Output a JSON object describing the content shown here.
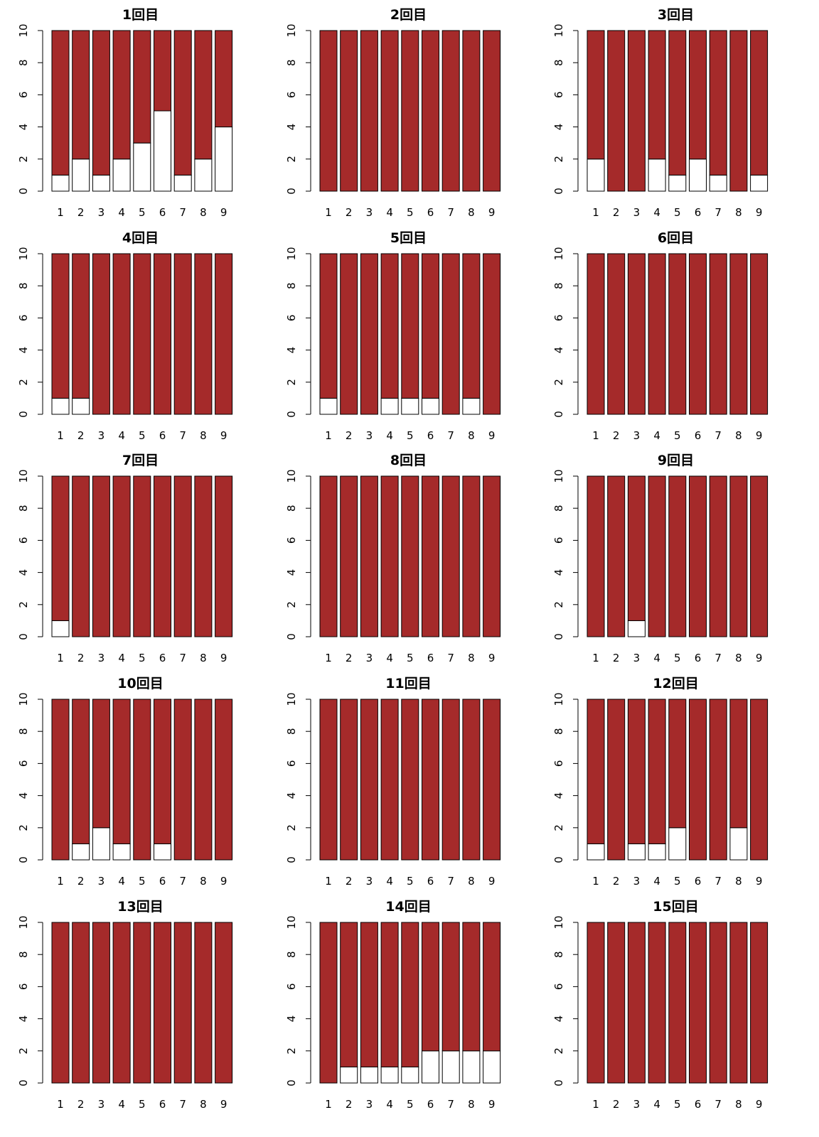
{
  "colors": {
    "stacked_bottom": "#ffffff",
    "stacked_top": "#a52a2a",
    "outline": "#000000"
  },
  "chart_data": [
    {
      "type": "bar",
      "stacked": true,
      "title": "1回目",
      "categories": [
        "1",
        "2",
        "3",
        "4",
        "5",
        "6",
        "7",
        "8",
        "9"
      ],
      "ylim": [
        0,
        10
      ],
      "yticks": [
        "0",
        "2",
        "4",
        "6",
        "8",
        "10"
      ],
      "series": [
        {
          "color": "#ffffff",
          "values": [
            1,
            2,
            1,
            2,
            3,
            5,
            1,
            2,
            4
          ]
        },
        {
          "color": "#a52a2a",
          "values": [
            9,
            8,
            9,
            8,
            7,
            5,
            9,
            8,
            6
          ]
        }
      ]
    },
    {
      "type": "bar",
      "stacked": true,
      "title": "2回目",
      "categories": [
        "1",
        "2",
        "3",
        "4",
        "5",
        "6",
        "7",
        "8",
        "9"
      ],
      "ylim": [
        0,
        10
      ],
      "yticks": [
        "0",
        "2",
        "4",
        "6",
        "8",
        "10"
      ],
      "series": [
        {
          "color": "#ffffff",
          "values": [
            0,
            0,
            0,
            0,
            0,
            0,
            0,
            0,
            0
          ]
        },
        {
          "color": "#a52a2a",
          "values": [
            10,
            10,
            10,
            10,
            10,
            10,
            10,
            10,
            10
          ]
        }
      ]
    },
    {
      "type": "bar",
      "stacked": true,
      "title": "3回目",
      "categories": [
        "1",
        "2",
        "3",
        "4",
        "5",
        "6",
        "7",
        "8",
        "9"
      ],
      "ylim": [
        0,
        10
      ],
      "yticks": [
        "0",
        "2",
        "4",
        "6",
        "8",
        "10"
      ],
      "series": [
        {
          "color": "#ffffff",
          "values": [
            2,
            0,
            0,
            2,
            1,
            2,
            1,
            0,
            1
          ]
        },
        {
          "color": "#a52a2a",
          "values": [
            8,
            10,
            10,
            8,
            9,
            8,
            9,
            10,
            9
          ]
        }
      ]
    },
    {
      "type": "bar",
      "stacked": true,
      "title": "4回目",
      "categories": [
        "1",
        "2",
        "3",
        "4",
        "5",
        "6",
        "7",
        "8",
        "9"
      ],
      "ylim": [
        0,
        10
      ],
      "yticks": [
        "0",
        "2",
        "4",
        "6",
        "8",
        "10"
      ],
      "series": [
        {
          "color": "#ffffff",
          "values": [
            1,
            1,
            0,
            0,
            0,
            0,
            0,
            0,
            0
          ]
        },
        {
          "color": "#a52a2a",
          "values": [
            9,
            9,
            10,
            10,
            10,
            10,
            10,
            10,
            10
          ]
        }
      ]
    },
    {
      "type": "bar",
      "stacked": true,
      "title": "5回目",
      "categories": [
        "1",
        "2",
        "3",
        "4",
        "5",
        "6",
        "7",
        "8",
        "9"
      ],
      "ylim": [
        0,
        10
      ],
      "yticks": [
        "0",
        "2",
        "4",
        "6",
        "8",
        "10"
      ],
      "series": [
        {
          "color": "#ffffff",
          "values": [
            1,
            0,
            0,
            1,
            1,
            1,
            0,
            1,
            0
          ]
        },
        {
          "color": "#a52a2a",
          "values": [
            9,
            10,
            10,
            9,
            9,
            9,
            10,
            9,
            10
          ]
        }
      ]
    },
    {
      "type": "bar",
      "stacked": true,
      "title": "6回目",
      "categories": [
        "1",
        "2",
        "3",
        "4",
        "5",
        "6",
        "7",
        "8",
        "9"
      ],
      "ylim": [
        0,
        10
      ],
      "yticks": [
        "0",
        "2",
        "4",
        "6",
        "8",
        "10"
      ],
      "series": [
        {
          "color": "#ffffff",
          "values": [
            0,
            0,
            0,
            0,
            0,
            0,
            0,
            0,
            0
          ]
        },
        {
          "color": "#a52a2a",
          "values": [
            10,
            10,
            10,
            10,
            10,
            10,
            10,
            10,
            10
          ]
        }
      ]
    },
    {
      "type": "bar",
      "stacked": true,
      "title": "7回目",
      "categories": [
        "1",
        "2",
        "3",
        "4",
        "5",
        "6",
        "7",
        "8",
        "9"
      ],
      "ylim": [
        0,
        10
      ],
      "yticks": [
        "0",
        "2",
        "4",
        "6",
        "8",
        "10"
      ],
      "series": [
        {
          "color": "#ffffff",
          "values": [
            1,
            0,
            0,
            0,
            0,
            0,
            0,
            0,
            0
          ]
        },
        {
          "color": "#a52a2a",
          "values": [
            9,
            10,
            10,
            10,
            10,
            10,
            10,
            10,
            10
          ]
        }
      ]
    },
    {
      "type": "bar",
      "stacked": true,
      "title": "8回目",
      "categories": [
        "1",
        "2",
        "3",
        "4",
        "5",
        "6",
        "7",
        "8",
        "9"
      ],
      "ylim": [
        0,
        10
      ],
      "yticks": [
        "0",
        "2",
        "4",
        "6",
        "8",
        "10"
      ],
      "series": [
        {
          "color": "#ffffff",
          "values": [
            0,
            0,
            0,
            0,
            0,
            0,
            0,
            0,
            0
          ]
        },
        {
          "color": "#a52a2a",
          "values": [
            10,
            10,
            10,
            10,
            10,
            10,
            10,
            10,
            10
          ]
        }
      ]
    },
    {
      "type": "bar",
      "stacked": true,
      "title": "9回目",
      "categories": [
        "1",
        "2",
        "3",
        "4",
        "5",
        "6",
        "7",
        "8",
        "9"
      ],
      "ylim": [
        0,
        10
      ],
      "yticks": [
        "0",
        "2",
        "4",
        "6",
        "8",
        "10"
      ],
      "series": [
        {
          "color": "#ffffff",
          "values": [
            0,
            0,
            1,
            0,
            0,
            0,
            0,
            0,
            0
          ]
        },
        {
          "color": "#a52a2a",
          "values": [
            10,
            10,
            9,
            10,
            10,
            10,
            10,
            10,
            10
          ]
        }
      ]
    },
    {
      "type": "bar",
      "stacked": true,
      "title": "10回目",
      "categories": [
        "1",
        "2",
        "3",
        "4",
        "5",
        "6",
        "7",
        "8",
        "9"
      ],
      "ylim": [
        0,
        10
      ],
      "yticks": [
        "0",
        "2",
        "4",
        "6",
        "8",
        "10"
      ],
      "series": [
        {
          "color": "#ffffff",
          "values": [
            0,
            1,
            2,
            1,
            0,
            1,
            0,
            0,
            0
          ]
        },
        {
          "color": "#a52a2a",
          "values": [
            10,
            9,
            8,
            9,
            10,
            9,
            10,
            10,
            10
          ]
        }
      ]
    },
    {
      "type": "bar",
      "stacked": true,
      "title": "11回目",
      "categories": [
        "1",
        "2",
        "3",
        "4",
        "5",
        "6",
        "7",
        "8",
        "9"
      ],
      "ylim": [
        0,
        10
      ],
      "yticks": [
        "0",
        "2",
        "4",
        "6",
        "8",
        "10"
      ],
      "series": [
        {
          "color": "#ffffff",
          "values": [
            0,
            0,
            0,
            0,
            0,
            0,
            0,
            0,
            0
          ]
        },
        {
          "color": "#a52a2a",
          "values": [
            10,
            10,
            10,
            10,
            10,
            10,
            10,
            10,
            10
          ]
        }
      ]
    },
    {
      "type": "bar",
      "stacked": true,
      "title": "12回目",
      "categories": [
        "1",
        "2",
        "3",
        "4",
        "5",
        "6",
        "7",
        "8",
        "9"
      ],
      "ylim": [
        0,
        10
      ],
      "yticks": [
        "0",
        "2",
        "4",
        "6",
        "8",
        "10"
      ],
      "series": [
        {
          "color": "#ffffff",
          "values": [
            1,
            0,
            1,
            1,
            2,
            0,
            0,
            2,
            0
          ]
        },
        {
          "color": "#a52a2a",
          "values": [
            9,
            10,
            9,
            9,
            8,
            10,
            10,
            8,
            10
          ]
        }
      ]
    },
    {
      "type": "bar",
      "stacked": true,
      "title": "13回目",
      "categories": [
        "1",
        "2",
        "3",
        "4",
        "5",
        "6",
        "7",
        "8",
        "9"
      ],
      "ylim": [
        0,
        10
      ],
      "yticks": [
        "0",
        "2",
        "4",
        "6",
        "8",
        "10"
      ],
      "series": [
        {
          "color": "#ffffff",
          "values": [
            0,
            0,
            0,
            0,
            0,
            0,
            0,
            0,
            0
          ]
        },
        {
          "color": "#a52a2a",
          "values": [
            10,
            10,
            10,
            10,
            10,
            10,
            10,
            10,
            10
          ]
        }
      ]
    },
    {
      "type": "bar",
      "stacked": true,
      "title": "14回目",
      "categories": [
        "1",
        "2",
        "3",
        "4",
        "5",
        "6",
        "7",
        "8",
        "9"
      ],
      "ylim": [
        0,
        10
      ],
      "yticks": [
        "0",
        "2",
        "4",
        "6",
        "8",
        "10"
      ],
      "series": [
        {
          "color": "#ffffff",
          "values": [
            0,
            1,
            1,
            1,
            1,
            2,
            2,
            2,
            2
          ]
        },
        {
          "color": "#a52a2a",
          "values": [
            10,
            9,
            9,
            9,
            9,
            8,
            8,
            8,
            8
          ]
        }
      ]
    },
    {
      "type": "bar",
      "stacked": true,
      "title": "15回目",
      "categories": [
        "1",
        "2",
        "3",
        "4",
        "5",
        "6",
        "7",
        "8",
        "9"
      ],
      "ylim": [
        0,
        10
      ],
      "yticks": [
        "0",
        "2",
        "4",
        "6",
        "8",
        "10"
      ],
      "series": [
        {
          "color": "#ffffff",
          "values": [
            0,
            0,
            0,
            0,
            0,
            0,
            0,
            0,
            0
          ]
        },
        {
          "color": "#a52a2a",
          "values": [
            10,
            10,
            10,
            10,
            10,
            10,
            10,
            10,
            10
          ]
        }
      ]
    }
  ]
}
